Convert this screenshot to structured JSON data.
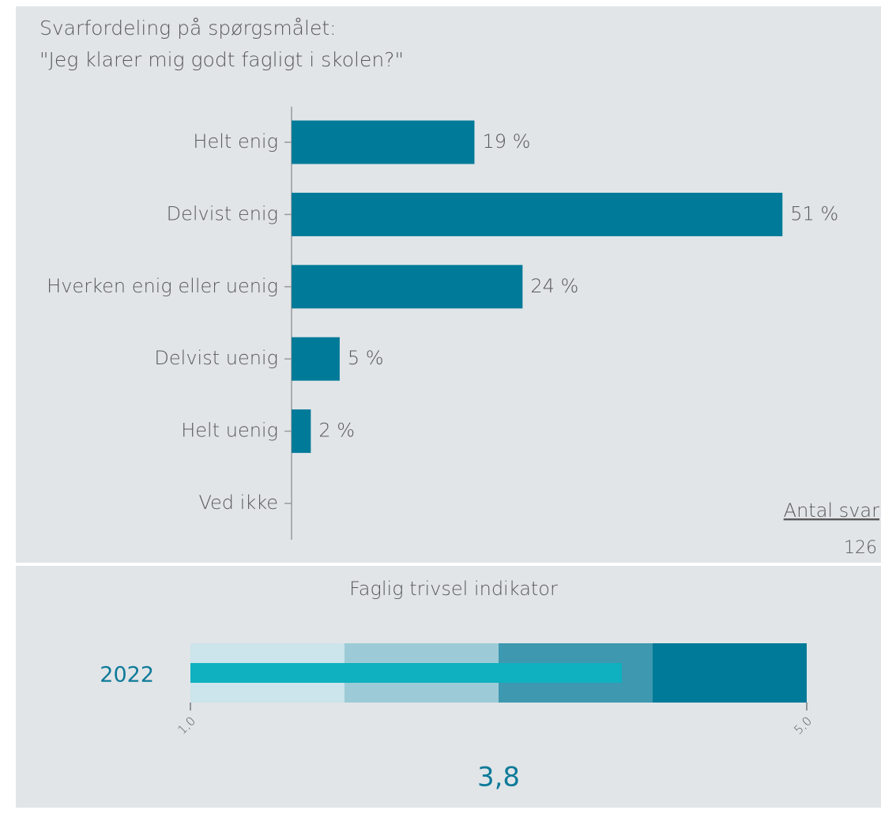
{
  "chart_data": [
    {
      "type": "hbar",
      "title": "Svarfordeling på spørgsmålet:",
      "subtitle": "\"Jeg klarer mig godt fagligt i skolen?\"",
      "categories": [
        "Helt enig",
        "Delvist enig",
        "Hverken enig eller uenig",
        "Delvist uenig",
        "Helt uenig",
        "Ved ikke"
      ],
      "values": [
        19,
        51,
        24,
        5,
        2,
        null
      ],
      "value_labels": [
        "19 %",
        "51 %",
        "24 %",
        "5 %",
        "2 %",
        null
      ],
      "color": "#007a99",
      "xlim": [
        0,
        55
      ],
      "annotations": [
        "Antal svar",
        "126"
      ]
    },
    {
      "type": "bullet",
      "title": "Faglig trivsel indikator",
      "categories": [
        "2022"
      ],
      "values": [
        3.8
      ],
      "value_labels": [
        "3,8"
      ],
      "color": "#0fb0bf",
      "bands": [
        2,
        3,
        4,
        5
      ],
      "band_colors": [
        "#cce4eb",
        "#9ccbd7",
        "#3d98b0",
        "#007a99"
      ],
      "xlim": [
        1,
        5
      ],
      "xticks": [
        {
          "value": 1,
          "label": "1,0"
        },
        {
          "value": 5,
          "label": "5,0"
        }
      ]
    }
  ]
}
